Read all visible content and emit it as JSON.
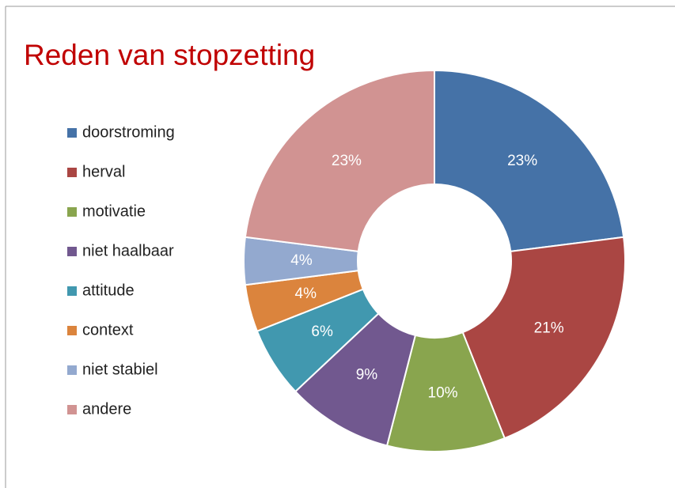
{
  "chart_data": {
    "type": "donut",
    "title": "Reden van stopzetting",
    "categories": [
      "doorstroming",
      "herval",
      "motivatie",
      "niet haalbaar",
      "attitude",
      "context",
      "niet stabiel",
      "andere"
    ],
    "values": [
      23,
      21,
      10,
      9,
      6,
      4,
      4,
      23
    ],
    "value_labels": [
      "23%",
      "21%",
      "10%",
      "9%",
      "6%",
      "4%",
      "4%",
      "23%"
    ],
    "colors": [
      "#4572a7",
      "#aa4643",
      "#89a54e",
      "#71588f",
      "#4198af",
      "#db843d",
      "#93a9cf",
      "#d19392"
    ],
    "legend": "left"
  }
}
